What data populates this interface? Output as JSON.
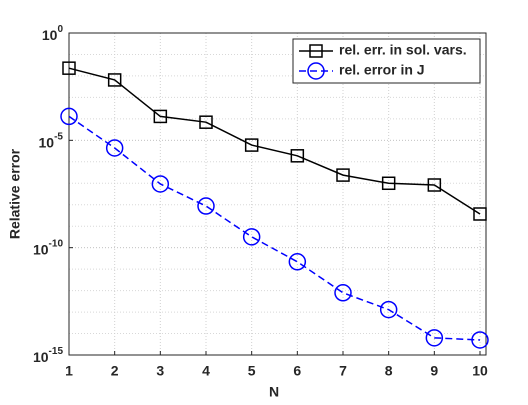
{
  "chart_data": {
    "type": "line",
    "x": [
      1,
      2,
      3,
      4,
      5,
      6,
      7,
      8,
      9,
      10
    ],
    "series": [
      {
        "name": "rel. err. in  sol. vars.",
        "color": "#000000",
        "marker": "square",
        "dash": "solid",
        "values": [
          0.023,
          0.0065,
          0.00013,
          7e-05,
          6e-06,
          1.9e-06,
          2.4e-07,
          1e-07,
          8.3e-08,
          3.7e-09
        ]
      },
      {
        "name": "rel. error in J",
        "color": "#0000ff",
        "marker": "circle",
        "dash": "dashed",
        "values": [
          0.00013,
          4.4e-06,
          9.3e-08,
          8.7e-09,
          3.2e-10,
          2.2e-11,
          7.9e-13,
          1.3e-13,
          6.3e-15,
          5e-15
        ]
      }
    ],
    "xlabel": "N",
    "ylabel": "Relative error",
    "xlim": [
      1,
      10
    ],
    "xticks": [
      1,
      2,
      3,
      4,
      5,
      6,
      7,
      8,
      9,
      10
    ],
    "ylim": [
      1e-15,
      1
    ],
    "ylog": true,
    "yticks": [
      {
        "value": 1e-15,
        "label": "10^-15"
      },
      {
        "value": 1e-10,
        "label": "10^-10"
      },
      {
        "value": 1e-05,
        "label": "10^-5"
      },
      {
        "value": 1,
        "label": "10^0"
      }
    ],
    "grid": true,
    "legend": "northeast"
  }
}
